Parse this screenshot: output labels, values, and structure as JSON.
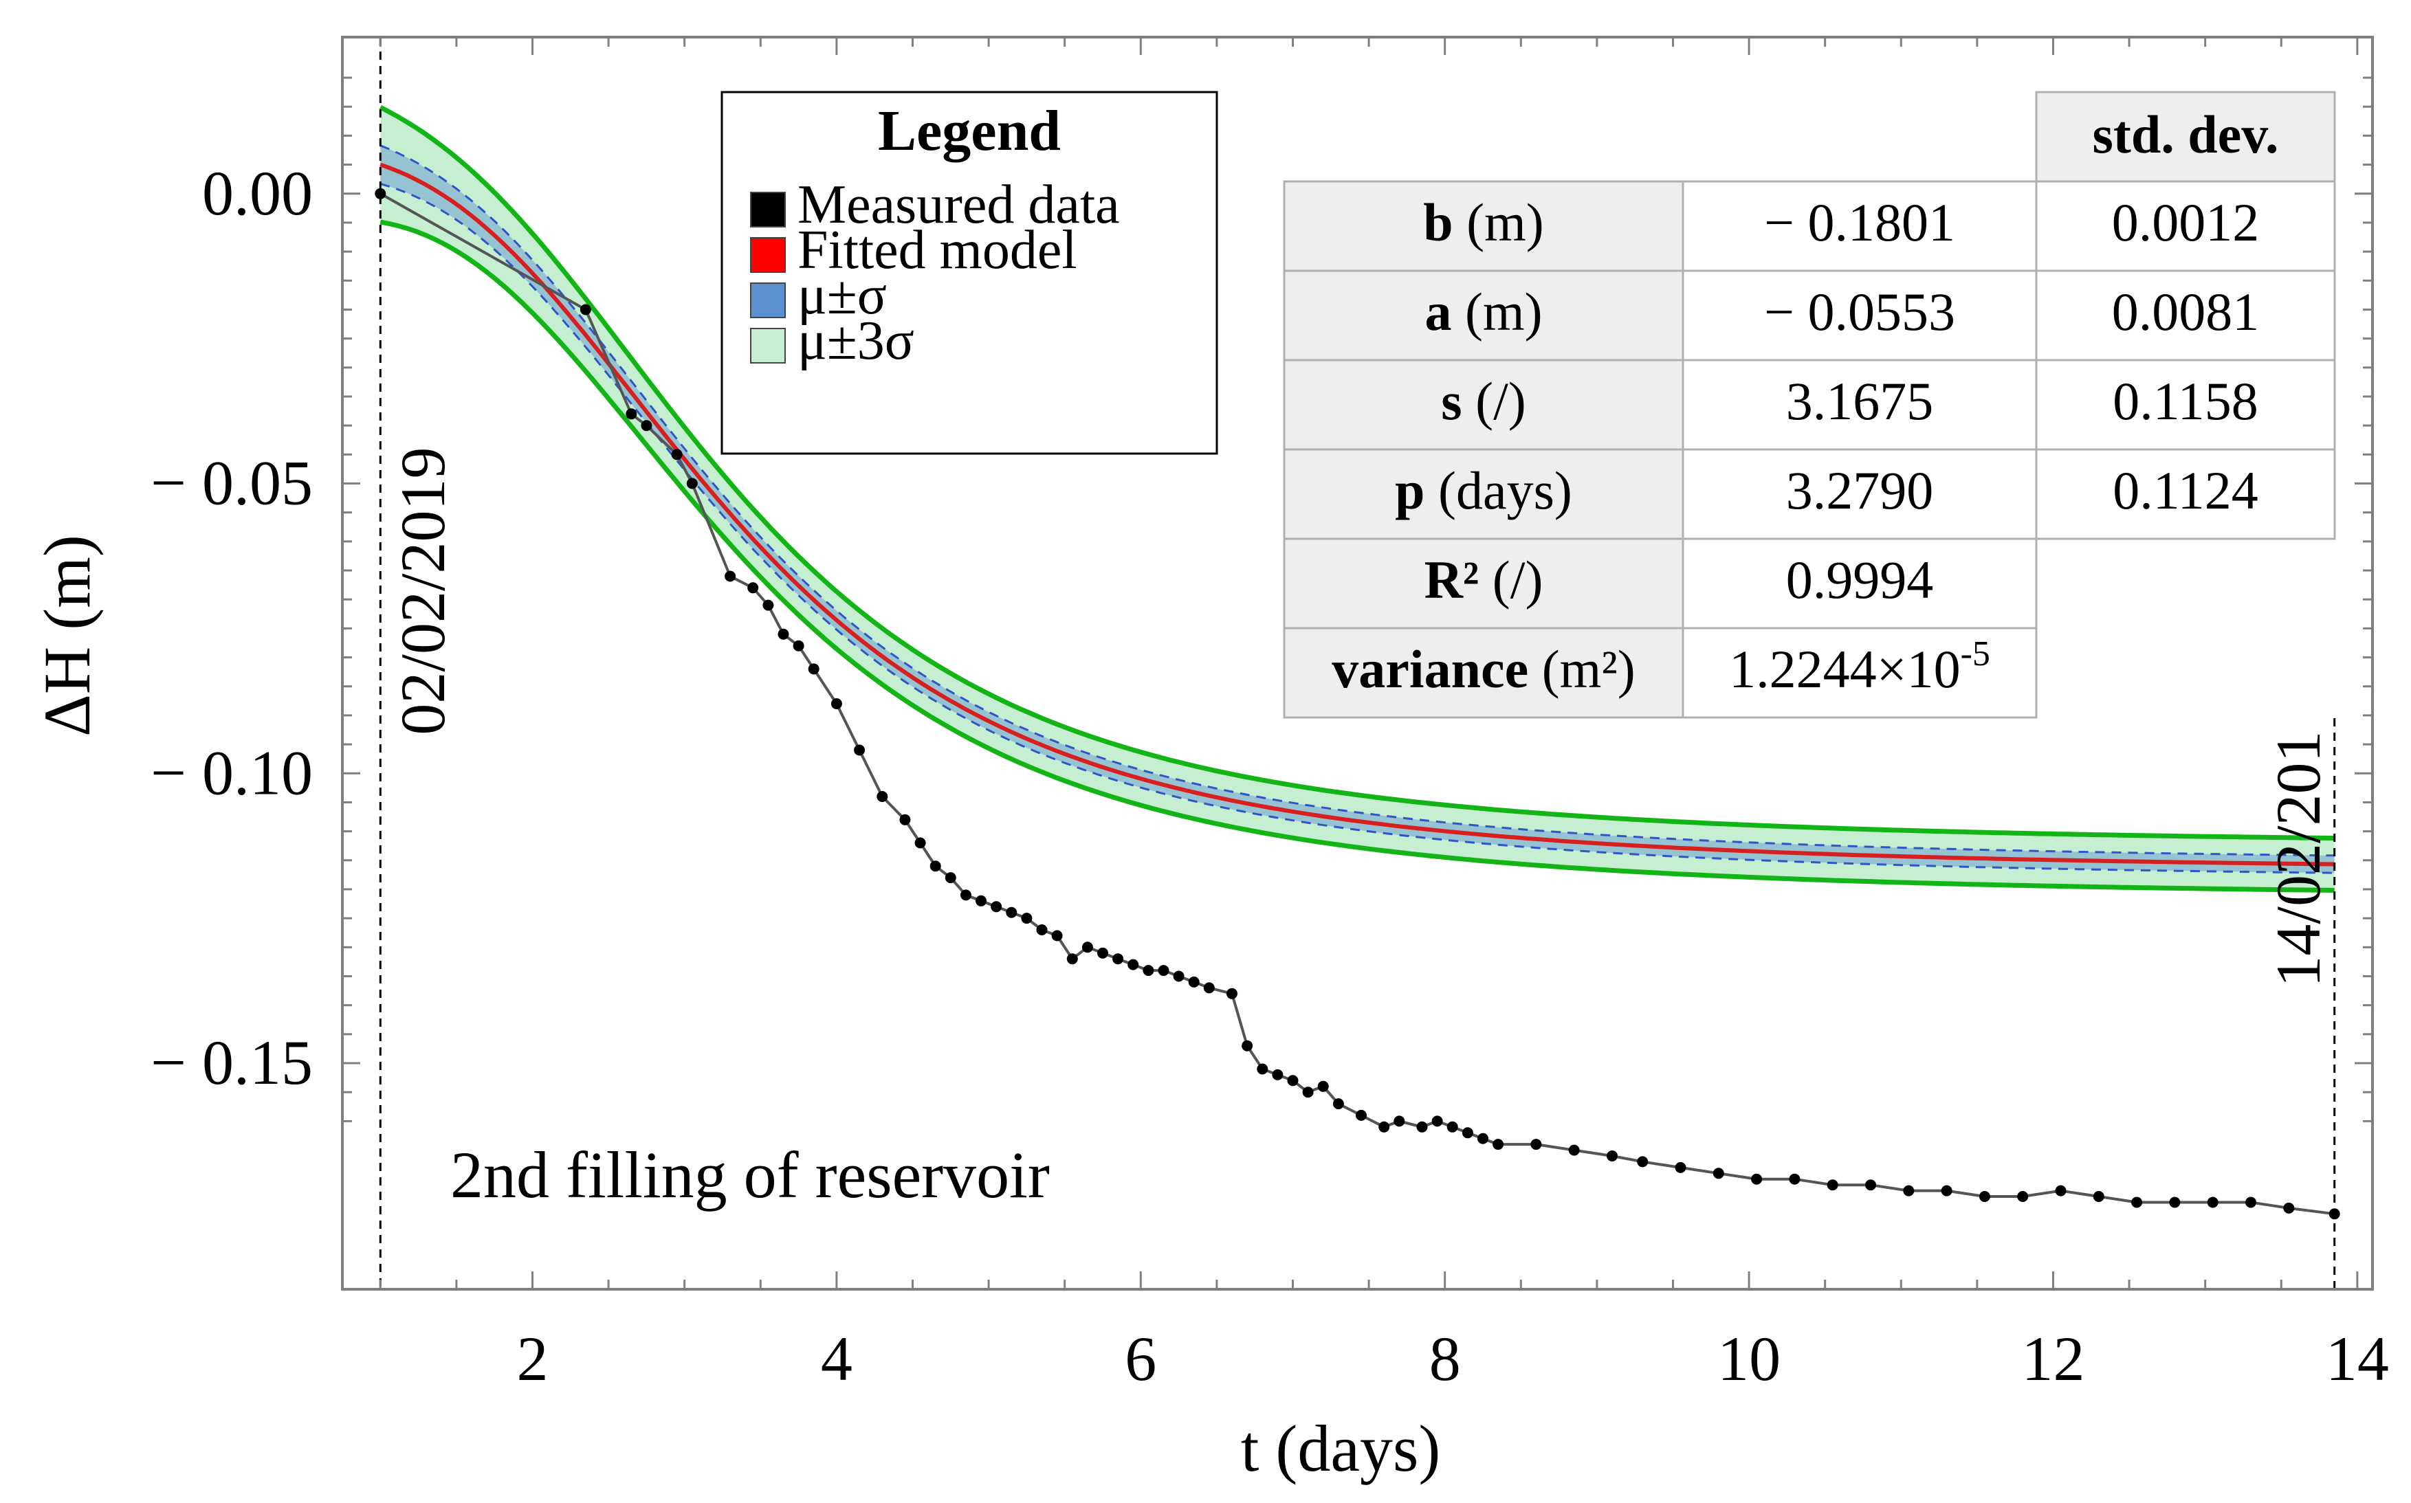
{
  "chart_data": {
    "type": "line",
    "xlabel": "t (days)",
    "ylabel": "ΔH (m)",
    "xlim": [
      0.75,
      14.1
    ],
    "ylim": [
      -0.189,
      0.027
    ],
    "xticks": [
      2,
      4,
      6,
      8,
      10,
      12,
      14
    ],
    "xtick_labels": [
      "2",
      "4",
      "6",
      "8",
      "10",
      "12",
      "14"
    ],
    "yticks": [
      0.0,
      -0.05,
      -0.1,
      -0.15
    ],
    "ytick_labels": [
      "0.00",
      "− 0.05",
      "− 0.10",
      "− 0.15"
    ],
    "grid": false,
    "legend_placement": "top-left-center",
    "legend": {
      "title": "Legend",
      "entries": [
        {
          "label": "Measured data",
          "color": "#000000"
        },
        {
          "label": "Fitted model",
          "color": "#ff0000"
        },
        {
          "label": "μ±σ",
          "color": "#5b8fd0"
        },
        {
          "label": "μ±3σ",
          "color": "#c6efd2"
        }
      ]
    },
    "annotations": {
      "start_date": "02/02/2019",
      "end_date": "14/02/201",
      "note": "2nd filling of reservoir"
    },
    "start_marker_x": 1.0,
    "end_marker_x": 13.85,
    "model": {
      "b": -0.1801,
      "a": -0.0553,
      "s": 3.1675,
      "p": 3.279,
      "mu_sigma": 0.0015,
      "three_sigma": 0.0045
    },
    "series": [
      {
        "name": "Measured data",
        "color": "#000000",
        "x": [
          1.0,
          2.35,
          2.65,
          2.75,
          2.95,
          3.05,
          3.3,
          3.45,
          3.55,
          3.65,
          3.75,
          3.85,
          4.0,
          4.15,
          4.3,
          4.45,
          4.55,
          4.65,
          4.75,
          4.85,
          4.95,
          5.05,
          5.15,
          5.25,
          5.35,
          5.45,
          5.55,
          5.65,
          5.75,
          5.85,
          5.95,
          6.05,
          6.15,
          6.25,
          6.35,
          6.45,
          6.6,
          6.7,
          6.8,
          6.9,
          7.0,
          7.1,
          7.2,
          7.3,
          7.45,
          7.6,
          7.7,
          7.85,
          7.95,
          8.05,
          8.15,
          8.25,
          8.35,
          8.6,
          8.85,
          9.1,
          9.3,
          9.55,
          9.8,
          10.05,
          10.3,
          10.55,
          10.8,
          11.05,
          11.3,
          11.55,
          11.8,
          12.05,
          12.3,
          12.55,
          12.8,
          13.05,
          13.3,
          13.55,
          13.85
        ],
        "y": [
          0.0,
          -0.02,
          -0.038,
          -0.04,
          -0.045,
          -0.05,
          -0.066,
          -0.068,
          -0.071,
          -0.076,
          -0.078,
          -0.082,
          -0.088,
          -0.096,
          -0.104,
          -0.108,
          -0.112,
          -0.116,
          -0.118,
          -0.121,
          -0.122,
          -0.123,
          -0.124,
          -0.125,
          -0.127,
          -0.128,
          -0.132,
          -0.13,
          -0.131,
          -0.132,
          -0.133,
          -0.134,
          -0.134,
          -0.135,
          -0.136,
          -0.137,
          -0.138,
          -0.147,
          -0.151,
          -0.152,
          -0.153,
          -0.155,
          -0.154,
          -0.157,
          -0.159,
          -0.161,
          -0.16,
          -0.161,
          -0.16,
          -0.161,
          -0.162,
          -0.163,
          -0.164,
          -0.164,
          -0.165,
          -0.166,
          -0.167,
          -0.168,
          -0.169,
          -0.17,
          -0.17,
          -0.171,
          -0.171,
          -0.172,
          -0.172,
          -0.173,
          -0.173,
          -0.172,
          -0.173,
          -0.174,
          -0.174,
          -0.174,
          -0.174,
          -0.175,
          -0.176
        ]
      },
      {
        "name": "Fitted model",
        "color": "#ff0000"
      },
      {
        "name": "μ±σ",
        "color": "#5b8fd0"
      },
      {
        "name": "μ±3σ",
        "color": "#c6efd2"
      }
    ],
    "table": {
      "header": [
        "",
        "",
        "std. dev."
      ],
      "rows": [
        {
          "param_bold": "b",
          "param_rest": " (m)",
          "value": "− 0.1801",
          "std": "0.0012"
        },
        {
          "param_bold": "a",
          "param_rest": " (m)",
          "value": "− 0.0553",
          "std": "0.0081"
        },
        {
          "param_bold": "s",
          "param_rest": " (/)",
          "value": "3.1675",
          "std": "0.1158"
        },
        {
          "param_bold": "p",
          "param_rest": " (days)",
          "value": "3.2790",
          "std": "0.1124"
        },
        {
          "param_bold": "R²",
          "param_rest": " (/)",
          "value": "0.9994",
          "std": ""
        },
        {
          "param_bold": "variance",
          "param_rest": " (m²)",
          "value": "1.2244×10",
          "value_sup": "-5",
          "std": ""
        }
      ]
    }
  }
}
